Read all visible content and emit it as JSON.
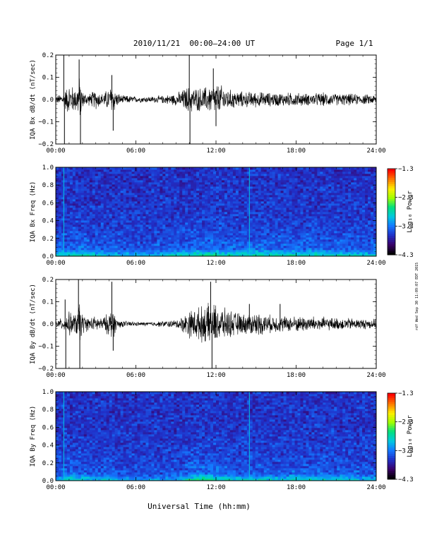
{
  "header": {
    "title": "2010/11/21  00:00–24:00 UT",
    "page": "Page 1/1"
  },
  "side_stamp": "rdf Wed Sep 30 11:09:07 EDT 2015",
  "xlabel": "Universal Time (hh:mm)",
  "colors": {
    "trace": "#000000",
    "colormap": [
      "#000000",
      "#3a0068",
      "#2030c8",
      "#1478ff",
      "#00c8e0",
      "#00e080",
      "#a0ff00",
      "#ffee00",
      "#ff7800",
      "#ff0000"
    ]
  },
  "chart_data": [
    {
      "type": "line",
      "ylabel": "IQA Bx dB/dt (nT/sec)",
      "xlim": [
        0,
        24
      ],
      "ylim": [
        -0.2,
        0.2
      ],
      "xticks": [
        "00:00",
        "06:00",
        "12:00",
        "18:00",
        "24:00"
      ],
      "yticks": [
        "0.2",
        "0.1",
        "0.0",
        "−0.1",
        "−0.2"
      ],
      "ytick_values": [
        0.2,
        0.1,
        0.0,
        -0.1,
        -0.2
      ],
      "envelope": {
        "x": [
          0,
          0.5,
          1.0,
          1.5,
          1.8,
          2.0,
          2.5,
          3.0,
          3.5,
          4.0,
          4.3,
          4.5,
          5.0,
          5.5,
          6.0,
          7.0,
          8.0,
          9.0,
          9.5,
          10.0,
          10.5,
          11.0,
          11.5,
          12.0,
          12.5,
          13.0,
          14.0,
          15.0,
          16.0,
          17.0,
          18.0,
          19.0,
          20.0,
          21.0,
          22.0,
          23.0,
          24.0
        ],
        "amp": [
          0.02,
          0.03,
          0.08,
          0.06,
          0.12,
          0.04,
          0.03,
          0.05,
          0.03,
          0.06,
          0.08,
          0.04,
          0.02,
          0.02,
          0.015,
          0.015,
          0.02,
          0.03,
          0.05,
          0.07,
          0.06,
          0.06,
          0.07,
          0.08,
          0.07,
          0.05,
          0.04,
          0.04,
          0.035,
          0.035,
          0.035,
          0.03,
          0.035,
          0.03,
          0.03,
          0.025,
          0.025
        ]
      },
      "spikes": [
        {
          "x": 0.6,
          "y": 0.2
        },
        {
          "x": 0.65,
          "y": -0.2
        },
        {
          "x": 1.75,
          "y": 0.18
        },
        {
          "x": 1.85,
          "y": -0.2
        },
        {
          "x": 4.2,
          "y": 0.11
        },
        {
          "x": 4.3,
          "y": -0.14
        },
        {
          "x": 10.0,
          "y": 0.2
        },
        {
          "x": 10.05,
          "y": -0.2
        },
        {
          "x": 11.8,
          "y": 0.14
        },
        {
          "x": 12.0,
          "y": -0.12
        }
      ]
    },
    {
      "type": "heatmap",
      "ylabel": "IQA Bx Freq (Hz)",
      "xlim": [
        0,
        24
      ],
      "ylim": [
        0,
        1.0
      ],
      "xticks": [
        "00:00",
        "06:00",
        "12:00",
        "18:00",
        "24:00"
      ],
      "yticks": [
        "1.0",
        "0.8",
        "0.6",
        "0.4",
        "0.2",
        "0.0"
      ],
      "ytick_values": [
        1.0,
        0.8,
        0.6,
        0.4,
        0.2,
        0.0
      ],
      "colorbar": {
        "label": "Log₁₀ Power",
        "range": [
          -4.3,
          -1.3
        ],
        "ticks": [
          "−1.3",
          "−2.3",
          "−3.3",
          "−4.3"
        ],
        "tick_values": [
          -1.3,
          -2.3,
          -3.3,
          -4.3
        ]
      },
      "activity": {
        "x": [
          0,
          1,
          2,
          3,
          4,
          5,
          6,
          7,
          8,
          9,
          10,
          11,
          12,
          13,
          14,
          15,
          16,
          17,
          18,
          19,
          20,
          21,
          22,
          23,
          24
        ],
        "level": [
          0.45,
          0.55,
          0.55,
          0.45,
          0.45,
          0.4,
          0.35,
          0.35,
          0.45,
          0.5,
          0.55,
          0.6,
          0.6,
          0.55,
          0.55,
          0.6,
          0.6,
          0.55,
          0.55,
          0.55,
          0.5,
          0.5,
          0.5,
          0.45,
          0.45
        ]
      },
      "vertical_lines": [
        {
          "x": 0.6
        },
        {
          "x": 14.5
        }
      ]
    },
    {
      "type": "line",
      "ylabel": "IQA By dB/dt (nT/sec)",
      "xlim": [
        0,
        24
      ],
      "ylim": [
        -0.2,
        0.2
      ],
      "xticks": [
        "00:00",
        "06:00",
        "12:00",
        "18:00",
        "24:00"
      ],
      "yticks": [
        "0.2",
        "0.1",
        "0.0",
        "−0.1",
        "−0.2"
      ],
      "ytick_values": [
        0.2,
        0.1,
        0.0,
        -0.1,
        -0.2
      ],
      "envelope": {
        "x": [
          0,
          0.5,
          1.0,
          1.5,
          1.8,
          2.0,
          2.5,
          3.0,
          3.5,
          4.0,
          4.3,
          4.5,
          5.0,
          5.5,
          6.0,
          7.0,
          8.0,
          9.0,
          9.5,
          10.0,
          10.5,
          11.0,
          11.5,
          12.0,
          12.5,
          13.0,
          14.0,
          15.0,
          16.0,
          17.0,
          18.0,
          19.0,
          20.0,
          21.0,
          22.0,
          23.0,
          24.0
        ],
        "amp": [
          0.02,
          0.03,
          0.06,
          0.05,
          0.12,
          0.05,
          0.03,
          0.04,
          0.03,
          0.06,
          0.09,
          0.03,
          0.015,
          0.015,
          0.01,
          0.01,
          0.015,
          0.02,
          0.04,
          0.07,
          0.08,
          0.09,
          0.1,
          0.1,
          0.08,
          0.07,
          0.05,
          0.06,
          0.045,
          0.04,
          0.04,
          0.04,
          0.035,
          0.03,
          0.03,
          0.025,
          0.025
        ]
      },
      "spikes": [
        {
          "x": 0.7,
          "y": 0.11
        },
        {
          "x": 0.75,
          "y": -0.2
        },
        {
          "x": 1.7,
          "y": 0.2
        },
        {
          "x": 1.8,
          "y": -0.2
        },
        {
          "x": 4.2,
          "y": 0.19
        },
        {
          "x": 4.3,
          "y": -0.12
        },
        {
          "x": 11.6,
          "y": 0.19
        },
        {
          "x": 11.7,
          "y": -0.2
        },
        {
          "x": 14.5,
          "y": 0.09
        },
        {
          "x": 16.8,
          "y": 0.09
        }
      ]
    },
    {
      "type": "heatmap",
      "ylabel": "IQA By Freq (Hz)",
      "xlim": [
        0,
        24
      ],
      "ylim": [
        0,
        1.0
      ],
      "xticks": [
        "00:00",
        "06:00",
        "12:00",
        "18:00",
        "24:00"
      ],
      "yticks": [
        "1.0",
        "0.8",
        "0.6",
        "0.4",
        "0.2",
        "0.0"
      ],
      "ytick_values": [
        1.0,
        0.8,
        0.6,
        0.4,
        0.2,
        0.0
      ],
      "colorbar": {
        "label": "Log₁₀ Power",
        "range": [
          -4.3,
          -1.3
        ],
        "ticks": [
          "−1.3",
          "−2.3",
          "−3.3",
          "−4.3"
        ],
        "tick_values": [
          -1.3,
          -2.3,
          -3.3,
          -4.3
        ]
      },
      "activity": {
        "x": [
          0,
          1,
          2,
          3,
          4,
          5,
          6,
          7,
          8,
          9,
          10,
          11,
          12,
          13,
          14,
          15,
          16,
          17,
          18,
          19,
          20,
          21,
          22,
          23,
          24
        ],
        "level": [
          0.4,
          0.5,
          0.5,
          0.4,
          0.45,
          0.35,
          0.3,
          0.3,
          0.3,
          0.35,
          0.55,
          0.7,
          0.6,
          0.5,
          0.45,
          0.45,
          0.45,
          0.45,
          0.5,
          0.5,
          0.5,
          0.45,
          0.45,
          0.4,
          0.4
        ]
      },
      "vertical_lines": [
        {
          "x": 0.6
        },
        {
          "x": 14.5
        }
      ]
    }
  ]
}
